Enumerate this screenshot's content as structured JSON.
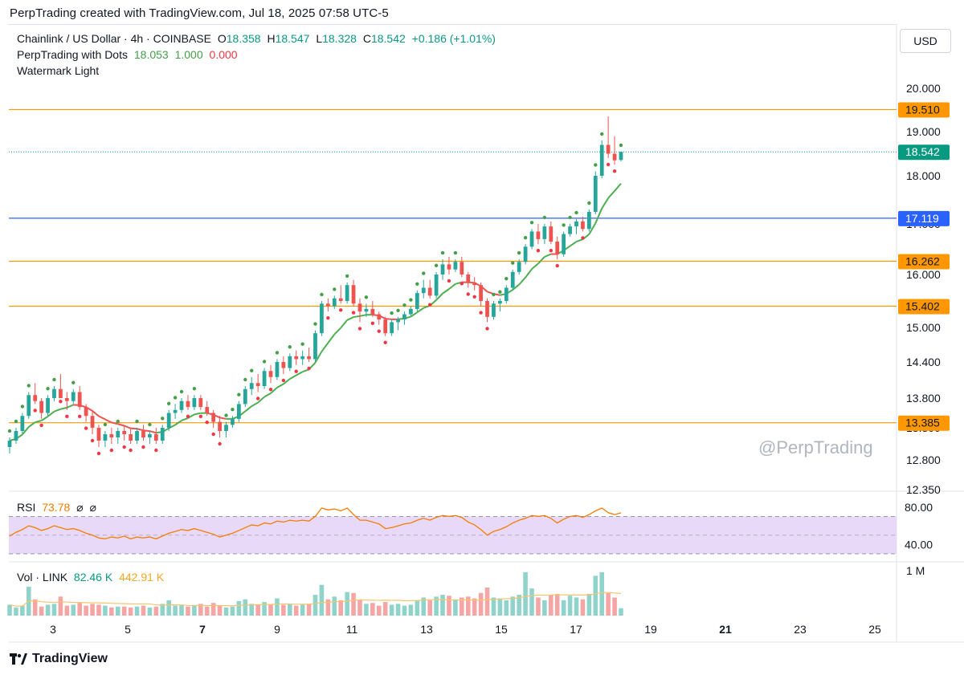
{
  "header": {
    "text": "PerpTrading created with TradingView.com, Jul 18, 2025 07:58 UTC-5"
  },
  "legend": {
    "symbol": "Chainlink / US Dollar · 4h · COINBASE",
    "o_label": "O",
    "o_value": "18.358",
    "h_label": "H",
    "h_value": "18.547",
    "l_label": "L",
    "l_value": "18.328",
    "c_label": "C",
    "c_value": "18.542",
    "change": "+0.186 (+1.01%)",
    "indicator_name": "PerpTrading with Dots",
    "indicator_v1": "18.053",
    "indicator_v2": "1.000",
    "indicator_v3": "0.000",
    "watermark_line": "Watermark Light"
  },
  "currency_button": "USD",
  "watermark_text": "@PerpTrading",
  "footer": {
    "brand": "TradingView"
  },
  "rsi": {
    "label": "RSI",
    "value": "73.78",
    "extra1": "⌀",
    "extra2": "⌀",
    "ticks": [
      "80.00",
      "40.00"
    ]
  },
  "volume": {
    "label": "Vol · LINK",
    "value": "82.46 K",
    "ma_value": "442.91 K",
    "tick": "1 M"
  },
  "colors": {
    "up": "#26a69a",
    "down": "#ef5350",
    "level": "#ff9800",
    "blue_level": "#2962ff",
    "ema": "#4caf50",
    "rsi_line": "#f57c00",
    "rsi_band": "#e9d9f8"
  },
  "chart_data": {
    "type": "candlestick",
    "symbol": "Chainlink / US Dollar",
    "timeframe": "4h",
    "price_axis_ticks": [
      "20.000",
      "19.000",
      "18.000",
      "17.000",
      "16.000",
      "15.000",
      "14.400",
      "13.800",
      "13.300",
      "12.800",
      "12.350"
    ],
    "x_ticks": [
      {
        "label": "3",
        "day": 3
      },
      {
        "label": "5",
        "day": 5
      },
      {
        "label": "7",
        "day": 7
      },
      {
        "label": "9",
        "day": 9
      },
      {
        "label": "11",
        "day": 11
      },
      {
        "label": "13",
        "day": 13
      },
      {
        "label": "15",
        "day": 15
      },
      {
        "label": "17",
        "day": 17
      },
      {
        "label": "19",
        "day": 19
      },
      {
        "label": "21",
        "day": 21
      },
      {
        "label": "23",
        "day": 23
      },
      {
        "label": "25",
        "day": 25
      }
    ],
    "horizontal_levels": [
      {
        "value": 19.51,
        "label": "19.510",
        "color": "#ff9800"
      },
      {
        "value": 17.119,
        "label": "17.119",
        "color": "#2962ff"
      },
      {
        "value": 16.262,
        "label": "16.262",
        "color": "#ff9800"
      },
      {
        "value": 15.402,
        "label": "15.402",
        "color": "#ff9800"
      },
      {
        "value": 13.385,
        "label": "13.385",
        "color": "#ff9800"
      }
    ],
    "last_price": {
      "value": 18.542,
      "label": "18.542",
      "color": "#089981"
    },
    "candles": [
      [
        13.0,
        13.15,
        12.9,
        13.1
      ],
      [
        13.1,
        13.3,
        13.05,
        13.25
      ],
      [
        13.25,
        13.55,
        13.2,
        13.5
      ],
      [
        13.5,
        13.9,
        13.45,
        13.85
      ],
      [
        13.85,
        14.05,
        13.7,
        13.75
      ],
      [
        13.75,
        13.8,
        13.45,
        13.55
      ],
      [
        13.55,
        13.85,
        13.5,
        13.8
      ],
      [
        13.8,
        14.0,
        13.75,
        13.95
      ],
      [
        13.95,
        14.2,
        13.85,
        13.8
      ],
      [
        13.8,
        13.9,
        13.6,
        13.75
      ],
      [
        13.75,
        13.95,
        13.7,
        13.9
      ],
      [
        13.9,
        14.0,
        13.6,
        13.65
      ],
      [
        13.65,
        13.7,
        13.4,
        13.5
      ],
      [
        13.5,
        13.6,
        13.2,
        13.3
      ],
      [
        13.3,
        13.35,
        13.0,
        13.1
      ],
      [
        13.1,
        13.25,
        13.0,
        13.2
      ],
      [
        13.2,
        13.3,
        13.05,
        13.15
      ],
      [
        13.15,
        13.3,
        13.05,
        13.25
      ],
      [
        13.25,
        13.35,
        13.1,
        13.2
      ],
      [
        13.2,
        13.3,
        13.05,
        13.1
      ],
      [
        13.1,
        13.3,
        13.05,
        13.25
      ],
      [
        13.25,
        13.35,
        13.1,
        13.15
      ],
      [
        13.15,
        13.25,
        13.05,
        13.2
      ],
      [
        13.2,
        13.3,
        13.05,
        13.1
      ],
      [
        13.1,
        13.35,
        13.05,
        13.3
      ],
      [
        13.3,
        13.6,
        13.25,
        13.55
      ],
      [
        13.55,
        13.7,
        13.45,
        13.6
      ],
      [
        13.6,
        13.8,
        13.55,
        13.75
      ],
      [
        13.75,
        13.85,
        13.6,
        13.65
      ],
      [
        13.65,
        13.85,
        13.6,
        13.8
      ],
      [
        13.8,
        13.85,
        13.6,
        13.65
      ],
      [
        13.65,
        13.75,
        13.5,
        13.55
      ],
      [
        13.55,
        13.6,
        13.3,
        13.4
      ],
      [
        13.4,
        13.5,
        13.15,
        13.25
      ],
      [
        13.25,
        13.4,
        13.15,
        13.35
      ],
      [
        13.35,
        13.5,
        13.3,
        13.45
      ],
      [
        13.45,
        13.75,
        13.4,
        13.7
      ],
      [
        13.7,
        14.0,
        13.65,
        13.95
      ],
      [
        13.95,
        14.15,
        13.85,
        14.05
      ],
      [
        14.05,
        14.2,
        13.9,
        14.0
      ],
      [
        14.0,
        14.3,
        13.95,
        14.25
      ],
      [
        14.25,
        14.35,
        14.05,
        14.15
      ],
      [
        14.15,
        14.45,
        14.1,
        14.4
      ],
      [
        14.4,
        14.5,
        14.2,
        14.3
      ],
      [
        14.3,
        14.55,
        14.25,
        14.5
      ],
      [
        14.5,
        14.6,
        14.35,
        14.45
      ],
      [
        14.45,
        14.6,
        14.35,
        14.5
      ],
      [
        14.5,
        14.65,
        14.4,
        14.45
      ],
      [
        14.45,
        14.95,
        14.4,
        14.9
      ],
      [
        14.9,
        15.5,
        14.85,
        15.45
      ],
      [
        15.45,
        15.55,
        15.3,
        15.4
      ],
      [
        15.4,
        15.6,
        15.35,
        15.55
      ],
      [
        15.55,
        15.8,
        15.45,
        15.5
      ],
      [
        15.5,
        15.85,
        15.45,
        15.8
      ],
      [
        15.8,
        15.9,
        15.4,
        15.45
      ],
      [
        15.45,
        15.55,
        15.1,
        15.3
      ],
      [
        15.3,
        15.45,
        15.2,
        15.35
      ],
      [
        15.35,
        15.5,
        15.2,
        15.25
      ],
      [
        15.25,
        15.3,
        15.05,
        15.15
      ],
      [
        15.15,
        15.2,
        14.85,
        14.9
      ],
      [
        14.9,
        15.15,
        14.85,
        15.1
      ],
      [
        15.1,
        15.2,
        14.95,
        15.15
      ],
      [
        15.15,
        15.3,
        15.05,
        15.25
      ],
      [
        15.25,
        15.4,
        15.2,
        15.35
      ],
      [
        15.35,
        15.7,
        15.3,
        15.65
      ],
      [
        15.65,
        15.9,
        15.55,
        15.75
      ],
      [
        15.75,
        15.9,
        15.55,
        15.6
      ],
      [
        15.6,
        16.05,
        15.55,
        16.0
      ],
      [
        16.0,
        16.3,
        15.9,
        16.2
      ],
      [
        16.2,
        16.35,
        16.0,
        16.1
      ],
      [
        16.1,
        16.3,
        16.05,
        16.25
      ],
      [
        16.25,
        16.35,
        15.95,
        16.0
      ],
      [
        16.0,
        16.05,
        15.75,
        15.85
      ],
      [
        15.85,
        15.95,
        15.7,
        15.8
      ],
      [
        15.8,
        15.85,
        15.4,
        15.5
      ],
      [
        15.5,
        15.55,
        15.1,
        15.2
      ],
      [
        15.2,
        15.5,
        15.15,
        15.45
      ],
      [
        15.45,
        15.55,
        15.3,
        15.5
      ],
      [
        15.5,
        15.8,
        15.45,
        15.75
      ],
      [
        15.75,
        16.1,
        15.7,
        16.05
      ],
      [
        16.05,
        16.3,
        16.0,
        16.25
      ],
      [
        16.25,
        16.6,
        16.2,
        16.55
      ],
      [
        16.55,
        16.9,
        16.5,
        16.85
      ],
      [
        16.85,
        17.0,
        16.6,
        16.7
      ],
      [
        16.7,
        17.0,
        16.6,
        16.95
      ],
      [
        16.95,
        17.05,
        16.6,
        16.65
      ],
      [
        16.65,
        16.75,
        16.3,
        16.4
      ],
      [
        16.4,
        16.85,
        16.35,
        16.8
      ],
      [
        16.8,
        17.0,
        16.75,
        16.95
      ],
      [
        16.95,
        17.1,
        16.8,
        17.05
      ],
      [
        17.05,
        17.15,
        16.85,
        16.9
      ],
      [
        16.9,
        17.3,
        16.85,
        17.25
      ],
      [
        17.25,
        18.1,
        17.2,
        18.0
      ],
      [
        18.0,
        18.8,
        17.95,
        18.7
      ],
      [
        18.7,
        19.35,
        18.4,
        18.5
      ],
      [
        18.5,
        18.9,
        18.25,
        18.35
      ],
      [
        18.358,
        18.547,
        18.328,
        18.542
      ]
    ],
    "rsi_values": [
      49,
      53,
      56,
      60,
      58,
      55,
      57,
      60,
      58,
      56,
      57,
      55,
      52,
      50,
      47,
      46,
      48,
      47,
      49,
      46,
      48,
      47,
      48,
      46,
      49,
      52,
      54,
      56,
      55,
      57,
      55,
      53,
      51,
      48,
      50,
      52,
      55,
      58,
      61,
      60,
      63,
      62,
      65,
      64,
      66,
      65,
      66,
      65,
      70,
      79,
      77,
      78,
      76,
      79,
      72,
      66,
      66,
      64,
      62,
      57,
      58,
      60,
      62,
      63,
      66,
      68,
      66,
      69,
      71,
      70,
      71,
      69,
      64,
      61,
      56,
      50,
      54,
      56,
      59,
      63,
      66,
      68,
      71,
      70,
      71,
      68,
      63,
      67,
      70,
      71,
      69,
      72,
      76,
      79,
      74,
      72,
      73.78
    ],
    "volume_values": [
      120,
      90,
      110,
      320,
      180,
      100,
      120,
      130,
      210,
      110,
      120,
      140,
      110,
      130,
      120,
      110,
      90,
      100,
      100,
      90,
      100,
      110,
      90,
      100,
      130,
      170,
      110,
      120,
      100,
      110,
      130,
      100,
      140,
      110,
      90,
      100,
      160,
      180,
      130,
      120,
      150,
      120,
      190,
      120,
      130,
      110,
      120,
      130,
      230,
      340,
      180,
      210,
      170,
      260,
      250,
      170,
      130,
      140,
      110,
      150,
      120,
      130,
      110,
      120,
      170,
      200,
      170,
      210,
      230,
      220,
      180,
      200,
      210,
      190,
      250,
      310,
      200,
      190,
      170,
      210,
      230,
      480,
      300,
      200,
      170,
      230,
      240,
      170,
      220,
      200,
      180,
      240,
      440,
      480,
      250,
      200,
      82
    ],
    "volume_tick": "1 M"
  }
}
